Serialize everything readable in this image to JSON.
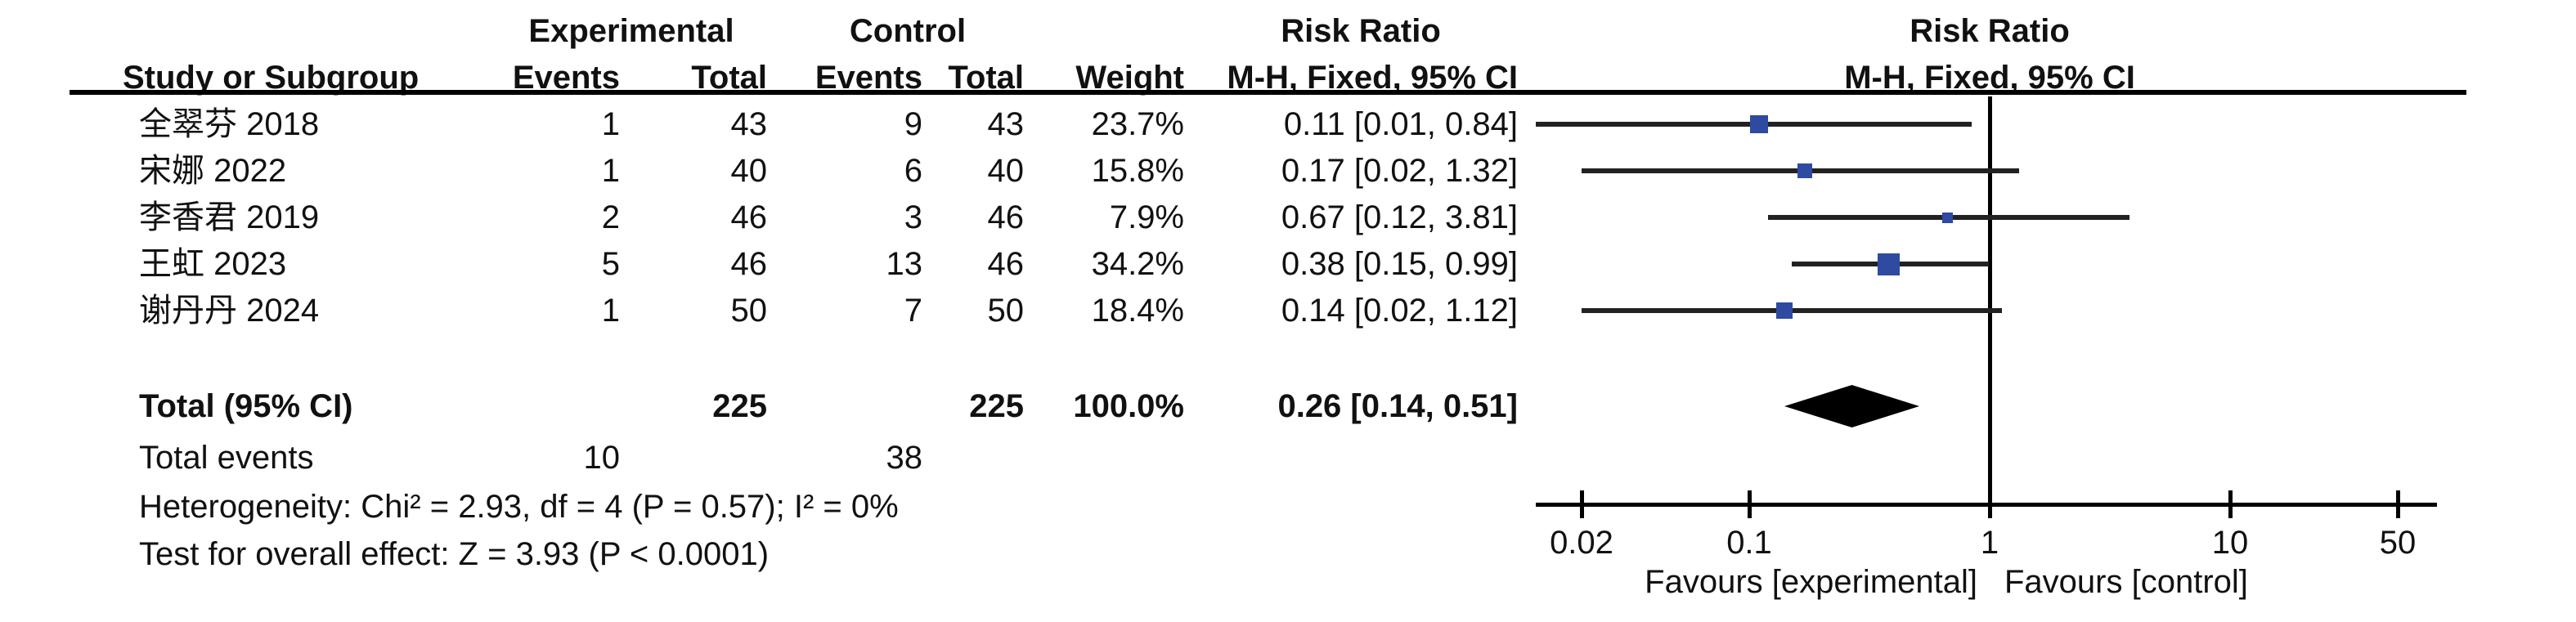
{
  "table": {
    "group_headers": {
      "experimental": "Experimental",
      "control": "Control",
      "risk_ratio_left": "Risk Ratio",
      "risk_ratio_right": "Risk Ratio"
    },
    "column_headers": {
      "study": "Study or Subgroup",
      "events_exp": "Events",
      "total_exp": "Total",
      "events_ctl": "Events",
      "total_ctl": "Total",
      "weight": "Weight",
      "mh_fixed_left": "M-H, Fixed, 95% CI",
      "mh_fixed_right": "M-H, Fixed, 95% CI"
    },
    "rows": [
      {
        "study": "全翠芬 2018",
        "events_exp": "1",
        "total_exp": "43",
        "events_ctl": "9",
        "total_ctl": "43",
        "weight": "23.7%",
        "ci_text": "0.11 [0.01, 0.84]"
      },
      {
        "study": "宋娜 2022",
        "events_exp": "1",
        "total_exp": "40",
        "events_ctl": "6",
        "total_ctl": "40",
        "weight": "15.8%",
        "ci_text": "0.17 [0.02, 1.32]"
      },
      {
        "study": "李香君 2019",
        "events_exp": "2",
        "total_exp": "46",
        "events_ctl": "3",
        "total_ctl": "46",
        "weight": "7.9%",
        "ci_text": "0.67 [0.12, 3.81]"
      },
      {
        "study": "王虹 2023",
        "events_exp": "5",
        "total_exp": "46",
        "events_ctl": "13",
        "total_ctl": "46",
        "weight": "34.2%",
        "ci_text": "0.38 [0.15, 0.99]"
      },
      {
        "study": "谢丹丹 2024",
        "events_exp": "1",
        "total_exp": "50",
        "events_ctl": "7",
        "total_ctl": "50",
        "weight": "18.4%",
        "ci_text": "0.14 [0.02, 1.12]"
      }
    ],
    "total_row": {
      "label": "Total (95% CI)",
      "total_exp": "225",
      "total_ctl": "225",
      "weight": "100.0%",
      "ci_text": "0.26 [0.14, 0.51]"
    },
    "total_events": {
      "label": "Total events",
      "exp": "10",
      "ctl": "38"
    },
    "heterogeneity": "Heterogeneity: Chi² = 2.93, df = 4 (P = 0.57); I² = 0%",
    "overall_effect": "Test for overall effect: Z = 3.93 (P < 0.0001)"
  },
  "chart_data": {
    "type": "forest",
    "x_scale": "log",
    "effect_measure": "Risk Ratio",
    "method": "M-H, Fixed, 95% CI",
    "xlim": [
      0.02,
      50
    ],
    "axis_ticks": [
      0.02,
      0.1,
      1,
      10,
      50
    ],
    "axis_tick_labels": [
      "0.02",
      "0.1",
      "1",
      "10",
      "50"
    ],
    "null_line": 1,
    "studies": [
      {
        "name": "全翠芬 2018",
        "rr": 0.11,
        "ci_low": 0.01,
        "ci_high": 0.84,
        "weight_pct": 23.7
      },
      {
        "name": "宋娜 2022",
        "rr": 0.17,
        "ci_low": 0.02,
        "ci_high": 1.32,
        "weight_pct": 15.8
      },
      {
        "name": "李香君 2019",
        "rr": 0.67,
        "ci_low": 0.12,
        "ci_high": 3.81,
        "weight_pct": 7.9
      },
      {
        "name": "王虹 2023",
        "rr": 0.38,
        "ci_low": 0.15,
        "ci_high": 0.99,
        "weight_pct": 34.2
      },
      {
        "name": "谢丹丹 2024",
        "rr": 0.14,
        "ci_low": 0.02,
        "ci_high": 1.12,
        "weight_pct": 18.4
      }
    ],
    "total": {
      "rr": 0.26,
      "ci_low": 0.14,
      "ci_high": 0.51,
      "weight_pct": 100.0
    },
    "favours_left": "Favours [experimental]",
    "favours_right": "Favours [control]",
    "marker_color": "#2e4aa1",
    "line_color": "#222222",
    "diamond_color": "#000000"
  }
}
